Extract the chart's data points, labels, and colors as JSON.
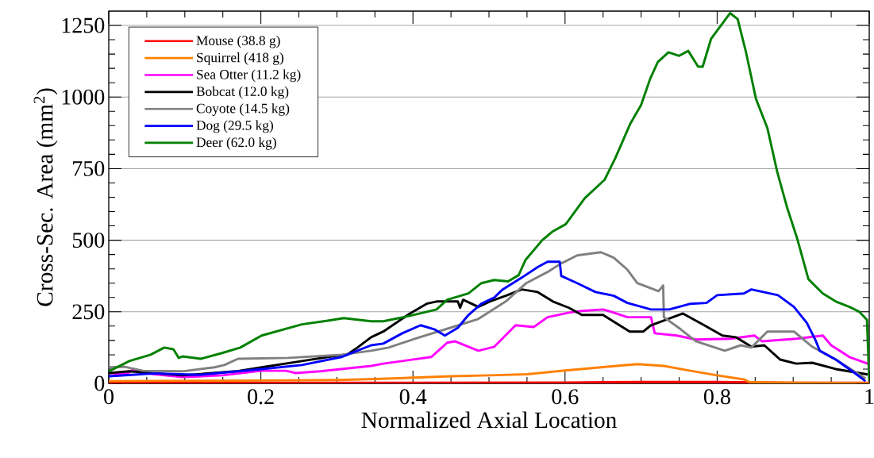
{
  "chart_data": {
    "type": "line",
    "xlabel": "Normalized Axial Location",
    "ylabel": "Cross-Sec. Area (mm$^{2}$)",
    "xlim": [
      0,
      1
    ],
    "ylim": [
      0,
      1300
    ],
    "xticks": [
      0,
      0.2,
      0.4,
      0.6,
      0.8,
      1
    ],
    "yticks": [
      0,
      250,
      500,
      750,
      1000,
      1250
    ],
    "grid": "y",
    "legend": "top left",
    "marker": "none",
    "line_style": "solid",
    "series": [
      {
        "name": "Mouse (38.8 g)",
        "color": "#ff0000",
        "x": [
          0,
          0.2,
          0.4,
          0.6,
          0.7,
          0.8,
          0.9,
          1
        ],
        "values": [
          2,
          2,
          2,
          3,
          5,
          5,
          2,
          2
        ]
      },
      {
        "name": "Squirrel (418 g)",
        "color": "#ff8000",
        "x": [
          0,
          0.2,
          0.3,
          0.35,
          0.4,
          0.45,
          0.5,
          0.55,
          0.6,
          0.65,
          0.695,
          0.73,
          0.765,
          0.8,
          0.835,
          0.842,
          0.87,
          1
        ],
        "values": [
          8,
          10,
          12,
          15,
          20,
          25,
          28,
          32,
          45,
          57,
          67,
          61,
          44,
          28,
          14,
          5,
          3,
          1
        ]
      },
      {
        "name": "Sea Otter (11.2 kg)",
        "color": "#ff00ff",
        "x": [
          0,
          0.024,
          0.031,
          0.045,
          0.097,
          0.149,
          0.201,
          0.233,
          0.246,
          0.278,
          0.345,
          0.361,
          0.424,
          0.438,
          0.445,
          0.455,
          0.486,
          0.507,
          0.535,
          0.559,
          0.577,
          0.605,
          0.622,
          0.65,
          0.661,
          0.682,
          0.713,
          0.718,
          0.747,
          0.772,
          0.817,
          0.849,
          0.859,
          0.904,
          0.939,
          0.95,
          0.974,
          0.998
        ],
        "values": [
          36,
          33,
          47,
          36,
          22,
          28,
          44,
          44,
          36,
          42,
          61,
          69,
          92,
          125,
          142,
          147,
          114,
          128,
          203,
          197,
          231,
          247,
          253,
          258,
          250,
          231,
          231,
          175,
          167,
          153,
          156,
          167,
          147,
          156,
          167,
          133,
          92,
          69
        ]
      },
      {
        "name": "Bobcat (12.0 kg)",
        "color": "#000000",
        "x": [
          0,
          0.027,
          0.097,
          0.167,
          0.201,
          0.254,
          0.288,
          0.313,
          0.327,
          0.345,
          0.361,
          0.396,
          0.418,
          0.431,
          0.459,
          0.462,
          0.466,
          0.486,
          0.501,
          0.522,
          0.543,
          0.564,
          0.584,
          0.605,
          0.622,
          0.65,
          0.685,
          0.703,
          0.713,
          0.755,
          0.783,
          0.807,
          0.825,
          0.845,
          0.862,
          0.883,
          0.904,
          0.925,
          0.956,
          0.998
        ],
        "values": [
          36,
          42,
          28,
          42,
          56,
          78,
          92,
          100,
          125,
          161,
          181,
          244,
          278,
          286,
          286,
          264,
          292,
          267,
          286,
          306,
          328,
          319,
          286,
          264,
          239,
          239,
          181,
          181,
          203,
          244,
          203,
          167,
          161,
          128,
          133,
          83,
          69,
          72,
          50,
          31
        ]
      },
      {
        "name": "Coyote (14.5 kg)",
        "color": "#808080",
        "x": [
          0,
          0.021,
          0.045,
          0.097,
          0.139,
          0.152,
          0.17,
          0.236,
          0.306,
          0.345,
          0.368,
          0.403,
          0.449,
          0.486,
          0.522,
          0.549,
          0.577,
          0.595,
          0.616,
          0.647,
          0.664,
          0.682,
          0.695,
          0.723,
          0.729,
          0.73,
          0.752,
          0.772,
          0.81,
          0.831,
          0.845,
          0.866,
          0.901,
          0.925,
          0.956,
          0.995
        ],
        "values": [
          56,
          58,
          44,
          42,
          56,
          64,
          86,
          89,
          100,
          114,
          125,
          156,
          194,
          225,
          286,
          350,
          389,
          419,
          447,
          458,
          439,
          397,
          350,
          322,
          342,
          231,
          189,
          147,
          114,
          133,
          125,
          181,
          181,
          128,
          83,
          17
        ]
      },
      {
        "name": "Dog (29.5 kg)",
        "color": "#0000ff",
        "x": [
          0,
          0.03,
          0.06,
          0.12,
          0.201,
          0.254,
          0.306,
          0.324,
          0.345,
          0.361,
          0.386,
          0.41,
          0.428,
          0.442,
          0.459,
          0.473,
          0.49,
          0.507,
          0.518,
          0.543,
          0.564,
          0.577,
          0.593,
          0.595,
          0.616,
          0.64,
          0.664,
          0.682,
          0.713,
          0.737,
          0.765,
          0.786,
          0.8,
          0.835,
          0.845,
          0.88,
          0.901,
          0.918,
          0.93,
          0.935,
          0.956,
          0.981,
          0.995
        ],
        "values": [
          25,
          30,
          35,
          30,
          50,
          64,
          92,
          111,
          133,
          139,
          175,
          203,
          189,
          167,
          194,
          239,
          278,
          300,
          328,
          369,
          406,
          425,
          425,
          375,
          350,
          319,
          306,
          281,
          258,
          258,
          278,
          281,
          308,
          314,
          328,
          308,
          267,
          211,
          147,
          114,
          83,
          36,
          8
        ]
      },
      {
        "name": "Deer (62.0 kg)",
        "color": "#008000",
        "x": [
          0,
          0.027,
          0.055,
          0.073,
          0.085,
          0.092,
          0.097,
          0.121,
          0.149,
          0.173,
          0.201,
          0.254,
          0.288,
          0.309,
          0.345,
          0.361,
          0.396,
          0.431,
          0.445,
          0.473,
          0.49,
          0.507,
          0.525,
          0.539,
          0.548,
          0.57,
          0.584,
          0.601,
          0.626,
          0.652,
          0.666,
          0.686,
          0.7,
          0.712,
          0.722,
          0.736,
          0.75,
          0.762,
          0.775,
          0.781,
          0.792,
          0.805,
          0.817,
          0.827,
          0.838,
          0.851,
          0.866,
          0.879,
          0.892,
          0.905,
          0.92,
          0.939,
          0.956,
          0.974,
          0.987,
          0.997,
          1
        ],
        "values": [
          42,
          78,
          100,
          125,
          119,
          89,
          94,
          86,
          106,
          125,
          167,
          206,
          219,
          228,
          217,
          217,
          236,
          258,
          292,
          314,
          350,
          361,
          356,
          378,
          431,
          500,
          531,
          556,
          647,
          711,
          786,
          908,
          972,
          1064,
          1122,
          1156,
          1144,
          1161,
          1106,
          1106,
          1203,
          1250,
          1293,
          1272,
          1156,
          994,
          892,
          739,
          614,
          508,
          364,
          314,
          286,
          267,
          250,
          222,
          8
        ]
      }
    ]
  }
}
